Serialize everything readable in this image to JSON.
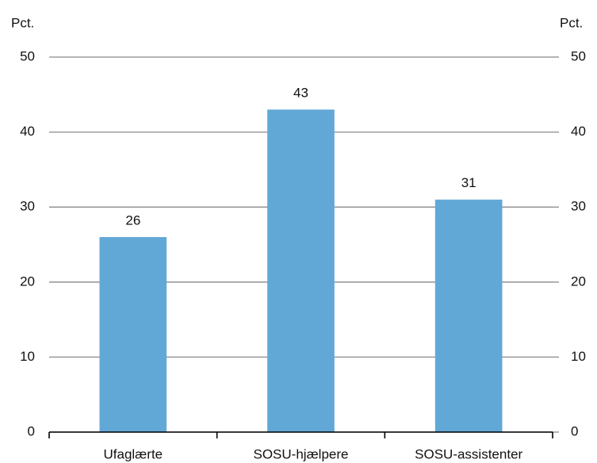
{
  "chart_data": {
    "type": "bar",
    "ylabel": "Pct.",
    "y2label": "Pct.",
    "categories": [
      "Ufaglærte",
      "SOSU-hjælpere",
      "SOSU-assistenter"
    ],
    "values": [
      26,
      43,
      31
    ],
    "color": "#62a8d6",
    "ylim": [
      0,
      50
    ],
    "yticks": [
      0,
      10,
      20,
      30,
      40,
      50
    ],
    "y2lim": [
      0,
      50
    ],
    "y2ticks": [
      0,
      10,
      20,
      30,
      40,
      50
    ],
    "grid": true
  }
}
